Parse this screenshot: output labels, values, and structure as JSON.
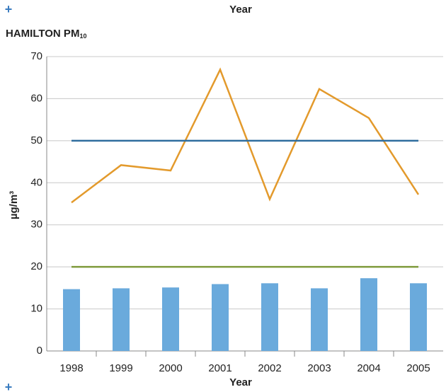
{
  "chart_data": {
    "type": "combo",
    "header": "Year",
    "title": "HAMILTON PM",
    "title_subscript": "10",
    "y_label": "µg/m³",
    "x_label": "Year",
    "categories": [
      "1998",
      "1999",
      "2000",
      "2001",
      "2002",
      "2003",
      "2004",
      "2005"
    ],
    "series": [
      {
        "type": "bar",
        "color": "#6aaadc",
        "values": [
          14.7,
          14.9,
          15.1,
          15.9,
          16.1,
          14.9,
          17.3,
          16.1
        ]
      },
      {
        "type": "line",
        "color": "#e39a2c",
        "values": [
          35.3,
          44.2,
          42.9,
          66.9,
          36.1,
          62.3,
          55.4,
          37.2
        ]
      },
      {
        "type": "line",
        "color": "#2f6d9e",
        "values": [
          50,
          50,
          50,
          50,
          50,
          50,
          50,
          50
        ]
      },
      {
        "type": "line",
        "color": "#7f9a3c",
        "values": [
          20,
          20,
          20,
          20,
          20,
          20,
          20,
          20
        ]
      }
    ],
    "ylim": [
      0,
      70
    ],
    "yticks": [
      0,
      10,
      20,
      30,
      40,
      50,
      60,
      70
    ],
    "grid": true
  }
}
